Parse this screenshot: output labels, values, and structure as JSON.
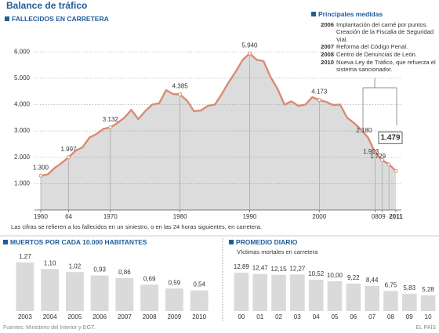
{
  "title": "Balance de tráfico",
  "note": "Las cifras se refieren a los fallecidos en un siniestro, o en las 24 horas siguientes, en carretera.",
  "measures": {
    "title": "Principales medidas",
    "items": [
      {
        "year": "2006",
        "text": "Implantación del carné por puntos. Creación de la Fiscalia de Seguridad Vial."
      },
      {
        "year": "2007",
        "text": "Reforma del Código Penal."
      },
      {
        "year": "2008",
        "text": "Centro de Denuncias de León."
      },
      {
        "year": "2010",
        "text": "Nueva Ley de Tráfico, que refuerza el sistema sancionador."
      }
    ]
  },
  "footer": {
    "source": "Fuentes: Ministerio del Interior y DGT.",
    "brand": "EL PAÍS"
  },
  "chart_data": [
    {
      "type": "area",
      "title": "FALLECIDOS EN CARRETERA",
      "color": "#d98b73",
      "fill": "#dcdcdc",
      "grid": true,
      "x": [
        1960,
        1961,
        1962,
        1963,
        1964,
        1965,
        1966,
        1967,
        1968,
        1969,
        1970,
        1971,
        1972,
        1973,
        1974,
        1975,
        1976,
        1977,
        1978,
        1979,
        1980,
        1981,
        1982,
        1983,
        1984,
        1985,
        1986,
        1987,
        1988,
        1989,
        1990,
        1991,
        1992,
        1993,
        1994,
        1995,
        1996,
        1997,
        1998,
        1999,
        2000,
        2001,
        2002,
        2003,
        2004,
        2005,
        2006,
        2007,
        2008,
        2009,
        2010,
        2011
      ],
      "values": [
        1300,
        1350,
        1600,
        1780,
        1997,
        2250,
        2380,
        2750,
        2880,
        3080,
        3132,
        3300,
        3500,
        3800,
        3450,
        3750,
        4000,
        4050,
        4550,
        4400,
        4385,
        4150,
        3750,
        3780,
        3950,
        4000,
        4400,
        4850,
        5250,
        5700,
        5940,
        5700,
        5650,
        5050,
        4600,
        4000,
        4120,
        3950,
        4000,
        4280,
        4173,
        4100,
        3980,
        4000,
        3500,
        3300,
        3050,
        2750,
        2180,
        1903,
        1729,
        1479
      ],
      "value_labels": [
        "1.300",
        null,
        null,
        null,
        "1.997",
        null,
        null,
        null,
        null,
        null,
        "3.132",
        null,
        null,
        null,
        null,
        null,
        null,
        null,
        null,
        null,
        "4.385",
        null,
        null,
        null,
        null,
        null,
        null,
        null,
        null,
        null,
        "5.940",
        null,
        null,
        null,
        null,
        null,
        null,
        null,
        null,
        null,
        "4.173",
        null,
        null,
        null,
        null,
        null,
        null,
        null,
        "2.180",
        "1.903",
        "1.729",
        "1.479"
      ],
      "xlim": [
        1960,
        2011
      ],
      "xticks": [
        1960,
        {
          "value": 1964,
          "label": "64"
        },
        1970,
        1980,
        1990,
        2000,
        {
          "value": 2008,
          "label": "08"
        },
        {
          "value": 2009,
          "label": "09"
        },
        2011
      ],
      "ylim": [
        0,
        6600
      ],
      "yticks": [
        {
          "value": 1000,
          "label": "1.000"
        },
        {
          "value": 2000,
          "label": "2.000"
        },
        {
          "value": 3000,
          "label": "3.000"
        },
        {
          "value": 4000,
          "label": "4.000"
        },
        {
          "value": 5000,
          "label": "5.000"
        },
        {
          "value": 6000,
          "label": "6.000"
        }
      ]
    },
    {
      "type": "bar",
      "title": "MUERTOS POR CADA 10.000 HABITANTES",
      "color": "#dadada",
      "categories": [
        "2003",
        "2004",
        "2005",
        "2006",
        "2007",
        "2008",
        "2009",
        "2010"
      ],
      "values": [
        1.27,
        1.1,
        1.02,
        0.93,
        0.86,
        0.69,
        0.59,
        0.54
      ],
      "value_labels": [
        "1,27",
        "1,10",
        "1,02",
        "0,93",
        "0,86",
        "0,69",
        "0,59",
        "0,54"
      ]
    },
    {
      "type": "bar",
      "title": "PROMEDIO DIARIO",
      "subtitle": "Víctimas mortales en carretera",
      "color": "#dadada",
      "categories": [
        "00",
        "01",
        "02",
        "03",
        "04",
        "05",
        "06",
        "07",
        "08",
        "09",
        "10"
      ],
      "values": [
        12.89,
        12.47,
        12.15,
        12.27,
        10.52,
        10.0,
        9.22,
        8.44,
        6.75,
        5.83,
        5.28
      ],
      "value_labels": [
        "12,89",
        "12,47",
        "12,15",
        "12,27",
        "10,52",
        "10,00",
        "9,22",
        "8,44",
        "6,75",
        "5,83",
        "5,28"
      ]
    }
  ]
}
